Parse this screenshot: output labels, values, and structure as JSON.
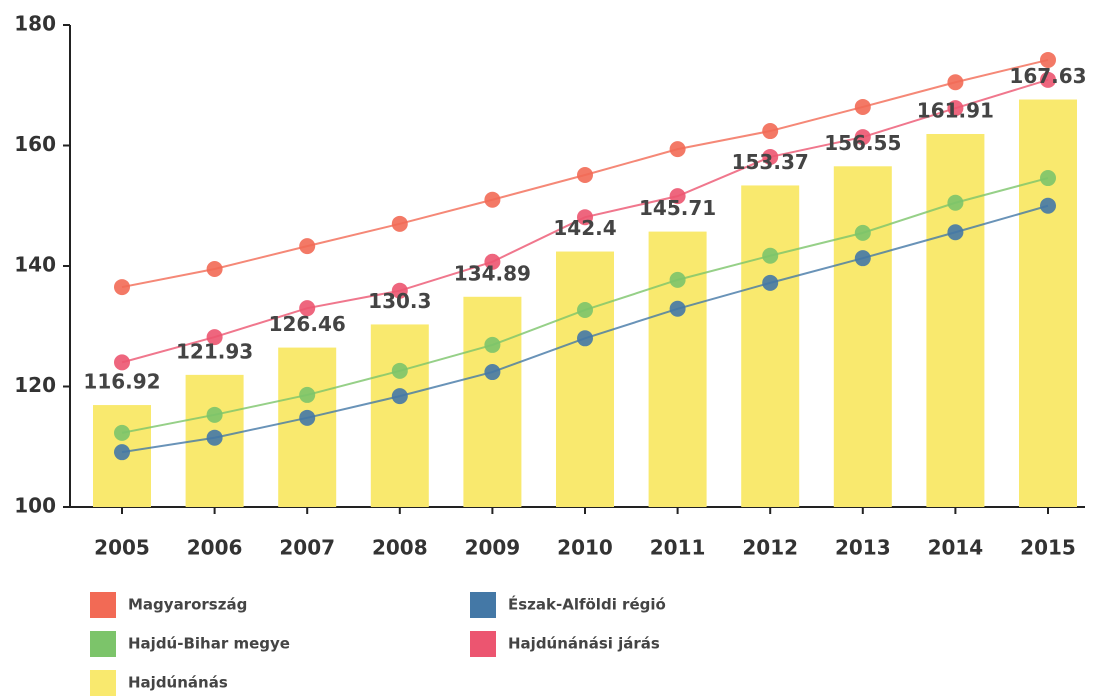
{
  "chart_data": {
    "type": "bar",
    "categories": [
      "2005",
      "2006",
      "2007",
      "2008",
      "2009",
      "2010",
      "2011",
      "2012",
      "2013",
      "2014",
      "2015"
    ],
    "series": [
      {
        "name": "Magyarország",
        "type": "line",
        "color": "#f26a55",
        "values": [
          136.5,
          139.5,
          143.3,
          147,
          151,
          155.1,
          159.4,
          162.4,
          166.4,
          170.5,
          174.2
        ]
      },
      {
        "name": "Hajdú-Bihar megye",
        "type": "line",
        "color": "#7cc46a",
        "values": [
          112.3,
          115.3,
          118.6,
          122.6,
          126.9,
          132.7,
          137.7,
          141.7,
          145.5,
          150.5,
          154.6
        ]
      },
      {
        "name": "Hajdúnánás",
        "type": "bar",
        "color": "#f9e96e",
        "values": [
          116.92,
          121.93,
          126.46,
          130.3,
          134.89,
          142.4,
          145.71,
          153.37,
          156.55,
          161.91,
          167.63
        ]
      },
      {
        "name": "Észak-Alföldi régió",
        "type": "line",
        "color": "#4478a6",
        "values": [
          109.1,
          111.5,
          114.8,
          118.4,
          122.4,
          128,
          132.9,
          137.2,
          141.3,
          145.6,
          150
        ]
      },
      {
        "name": "Hajdúnánási járás",
        "type": "line",
        "color": "#ec5570",
        "values": [
          124,
          128.2,
          133,
          135.9,
          140.7,
          148.1,
          151.6,
          158.1,
          161.4,
          166.2,
          170.9
        ]
      }
    ],
    "ylim": [
      100,
      180
    ],
    "yticks": [
      100,
      120,
      140,
      160,
      180
    ],
    "grid": false
  }
}
